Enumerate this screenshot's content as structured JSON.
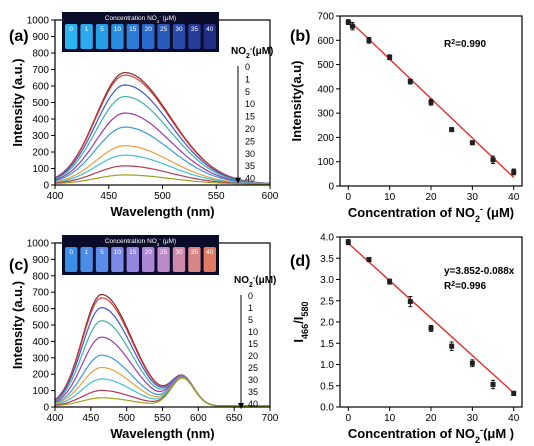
{
  "chart_data": [
    {
      "panel": "(a)",
      "type": "line",
      "xlabel": "Wavelength (nm)",
      "ylabel": "Intensity (a.u.)",
      "xlim": [
        400,
        600
      ],
      "ylim": [
        0,
        1000
      ],
      "xticks": [
        400,
        450,
        500,
        550,
        600
      ],
      "yticks": [
        0,
        100,
        200,
        300,
        400,
        500,
        600,
        700,
        800,
        900,
        1000
      ],
      "legend_title": "NO2-(μM)",
      "concentration_labels": [
        "0",
        "1",
        "5",
        "10",
        "15",
        "20",
        "25",
        "30",
        "35",
        "40"
      ],
      "inset": {
        "title": "Concentration NO2- (μM)",
        "labels": [
          "0",
          "1",
          "5",
          "10",
          "15",
          "20",
          "25",
          "30",
          "35",
          "40"
        ],
        "colors": [
          "#2fb4f2",
          "#2caaf0",
          "#279de8",
          "#2a8ee0",
          "#2a7cd6",
          "#2a6bc9",
          "#2a5abb",
          "#284aa9",
          "#253c98",
          "#222e86"
        ]
      },
      "series": [
        {
          "label": "0",
          "peak_x": 465,
          "peak_y": 675
        },
        {
          "label": "1",
          "peak_x": 465,
          "peak_y": 660
        },
        {
          "label": "5",
          "peak_x": 465,
          "peak_y": 600
        },
        {
          "label": "10",
          "peak_x": 465,
          "peak_y": 530
        },
        {
          "label": "15",
          "peak_x": 465,
          "peak_y": 430
        },
        {
          "label": "20",
          "peak_x": 465,
          "peak_y": 345
        },
        {
          "label": "25",
          "peak_x": 465,
          "peak_y": 232
        },
        {
          "label": "30",
          "peak_x": 465,
          "peak_y": 175
        },
        {
          "label": "35",
          "peak_x": 465,
          "peak_y": 110
        },
        {
          "label": "40",
          "peak_x": 465,
          "peak_y": 55
        }
      ]
    },
    {
      "panel": "(b)",
      "type": "scatter",
      "xlabel": "Concentration of NO2- (μM)",
      "ylabel": "Intensity(a.u)",
      "xlim": [
        -2,
        42
      ],
      "ylim": [
        0,
        700
      ],
      "xticks": [
        0,
        10,
        20,
        30,
        40
      ],
      "yticks": [
        0,
        100,
        200,
        300,
        400,
        500,
        600,
        700
      ],
      "annotation": "R2=0.990",
      "x": [
        0,
        1,
        5,
        10,
        15,
        20,
        25,
        30,
        35,
        40
      ],
      "y": [
        675,
        658,
        600,
        530,
        430,
        345,
        232,
        178,
        108,
        58
      ],
      "error": [
        10,
        15,
        12,
        10,
        10,
        12,
        8,
        8,
        15,
        12
      ],
      "fit_line": {
        "x": [
          0,
          40
        ],
        "y": [
          685,
          35
        ]
      }
    },
    {
      "panel": "(c)",
      "type": "line",
      "xlabel": "Wavelength (nm)",
      "ylabel": "Intensity (a.u.)",
      "xlim": [
        400,
        700
      ],
      "ylim": [
        0,
        1000
      ],
      "xticks": [
        400,
        450,
        500,
        550,
        600,
        650,
        700
      ],
      "yticks": [
        0,
        100,
        200,
        300,
        400,
        500,
        600,
        700,
        800,
        900,
        1000
      ],
      "legend_title": "NO2-(μM)",
      "concentration_labels": [
        "0",
        "1",
        "5",
        "10",
        "15",
        "20",
        "25",
        "30",
        "35",
        "40"
      ],
      "inset": {
        "title": "Concentration NO2- (μM)",
        "labels": [
          "0",
          "1",
          "5",
          "10",
          "15",
          "20",
          "25",
          "30",
          "35",
          "40"
        ],
        "colors": [
          "#3b8fe8",
          "#4a8eea",
          "#5c8ceb",
          "#7a8ae6",
          "#9486df",
          "#aa86d4",
          "#b98ac7",
          "#cc8aa8",
          "#d88685",
          "#e07a60"
        ]
      },
      "series": [
        {
          "label": "0",
          "peak_x": 465,
          "peak_y": 680,
          "peak2_y": 170
        },
        {
          "label": "1",
          "peak_x": 465,
          "peak_y": 660,
          "peak2_y": 170
        },
        {
          "label": "5",
          "peak_x": 465,
          "peak_y": 600,
          "peak2_y": 170
        },
        {
          "label": "10",
          "peak_x": 465,
          "peak_y": 520,
          "peak2_y": 170
        },
        {
          "label": "15",
          "peak_x": 465,
          "peak_y": 420,
          "peak2_y": 170
        },
        {
          "label": "20",
          "peak_x": 465,
          "peak_y": 310,
          "peak2_y": 170
        },
        {
          "label": "25",
          "peak_x": 465,
          "peak_y": 235,
          "peak2_y": 170
        },
        {
          "label": "30",
          "peak_x": 465,
          "peak_y": 165,
          "peak2_y": 170
        },
        {
          "label": "35",
          "peak_x": 465,
          "peak_y": 95,
          "peak2_y": 170
        },
        {
          "label": "40",
          "peak_x": 465,
          "peak_y": 50,
          "peak2_y": 170
        }
      ]
    },
    {
      "panel": "(d)",
      "type": "scatter",
      "xlabel": "Concentration of NO2-(μM )",
      "ylabel": "I466/I580",
      "xlim": [
        -2,
        42
      ],
      "ylim": [
        0,
        4.0
      ],
      "xticks": [
        0,
        10,
        20,
        30,
        40
      ],
      "yticks": [
        0.0,
        0.5,
        1.0,
        1.5,
        2.0,
        2.5,
        3.0,
        3.5,
        4.0
      ],
      "annotations": [
        "y=3.852-0.088x",
        "R2=0.996"
      ],
      "x": [
        0,
        5,
        10,
        15,
        20,
        25,
        30,
        35,
        40
      ],
      "y": [
        3.88,
        3.47,
        2.95,
        2.48,
        1.85,
        1.43,
        1.03,
        0.53,
        0.32
      ],
      "error": [
        0.06,
        0.05,
        0.06,
        0.12,
        0.07,
        0.1,
        0.08,
        0.1,
        0.05
      ],
      "fit_line": {
        "x": [
          0,
          40
        ],
        "y": [
          3.852,
          0.332
        ]
      }
    }
  ],
  "colors": {
    "spectra": [
      "#7a2a2a",
      "#d83a3a",
      "#3a58d0",
      "#40b0a8",
      "#9a3aa8",
      "#3a9ad8",
      "#e6a040",
      "#3fc0d8",
      "#b03a5a",
      "#a0a020",
      "#e08030"
    ],
    "fit_line": "#e03030",
    "marker": "#202020"
  }
}
